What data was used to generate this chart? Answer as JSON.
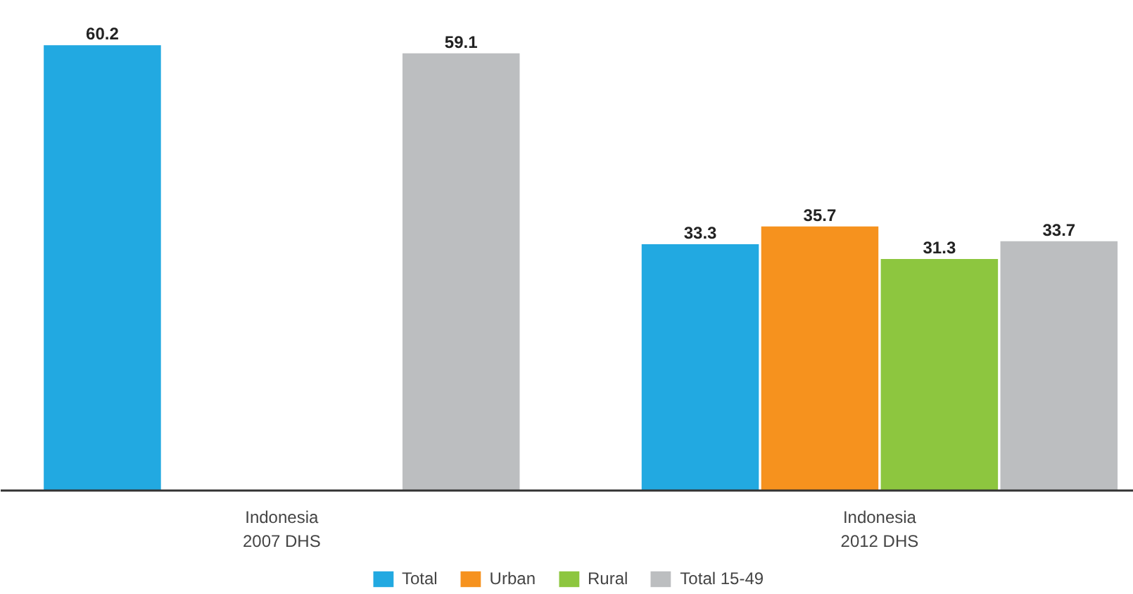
{
  "chart_data": {
    "type": "bar",
    "categories": [
      "Indonesia\n2007 DHS",
      "Indonesia\n2012 DHS"
    ],
    "series": [
      {
        "name": "Total",
        "color": "#22a9e1",
        "values": [
          60.2,
          33.3
        ]
      },
      {
        "name": "Urban",
        "color": "#f6921e",
        "values": [
          null,
          35.7
        ]
      },
      {
        "name": "Rural",
        "color": "#8dc63f",
        "values": [
          null,
          31.3
        ]
      },
      {
        "name": "Total 15-49",
        "color": "#bcbec0",
        "values": [
          59.1,
          33.7
        ]
      }
    ],
    "data_labels": true,
    "legend": "bottom",
    "grid": false
  }
}
